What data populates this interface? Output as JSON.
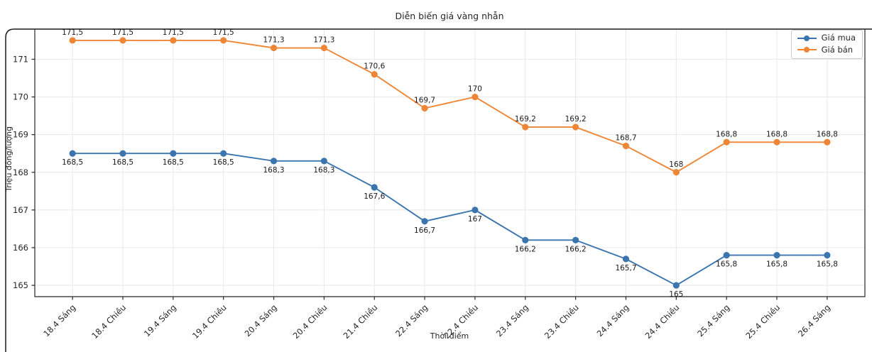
{
  "chart_data": {
    "type": "line",
    "title": "Diễn biến giá vàng nhẫn",
    "xlabel": "Thời điểm",
    "ylabel": "Triệu đồng/lượng",
    "categories": [
      "18.4 Sáng",
      "18.4 Chiều",
      "19.4 Sáng",
      "19.4 Chiều",
      "20.4 Sáng",
      "20.4 Chiều",
      "21.4 Chiều",
      "22.4 Sáng",
      "22.4 Chiều",
      "23.4 Sáng",
      "23.4 Chiều",
      "24.4 Sáng",
      "24.4 Chiều",
      "25.4 Sáng",
      "25.4 Chiều",
      "26.4 Sáng"
    ],
    "series": [
      {
        "name": "Giá mua",
        "color": "#3b75af",
        "values": [
          168.5,
          168.5,
          168.5,
          168.5,
          168.3,
          168.3,
          167.6,
          166.7,
          167.0,
          166.2,
          166.2,
          165.7,
          165.0,
          165.8,
          165.8,
          165.8
        ],
        "labels": [
          "168,5",
          "168,5",
          "168,5",
          "168,5",
          "168,3",
          "168,3",
          "167,6",
          "166,7",
          "167",
          "166,2",
          "166,2",
          "165,7",
          "165",
          "165,8",
          "165,8",
          "165,8"
        ],
        "label_position": "below"
      },
      {
        "name": "Giá bán",
        "color": "#ef8636",
        "values": [
          171.5,
          171.5,
          171.5,
          171.5,
          171.3,
          171.3,
          170.6,
          169.7,
          170.0,
          169.2,
          169.2,
          168.7,
          168.0,
          168.8,
          168.8,
          168.8
        ],
        "labels": [
          "171,5",
          "171,5",
          "171,5",
          "171,5",
          "171,3",
          "171,3",
          "170,6",
          "169,7",
          "170",
          "169,2",
          "169,2",
          "168,7",
          "168",
          "168,8",
          "168,8",
          "168,8"
        ],
        "label_position": "above"
      }
    ],
    "yticks": [
      165,
      166,
      167,
      168,
      169,
      170,
      171
    ],
    "ylim": [
      164.7,
      171.8
    ],
    "grid": true,
    "grid_color": "#e8e8e8",
    "legend_position": "top-right",
    "marker": "circle"
  }
}
